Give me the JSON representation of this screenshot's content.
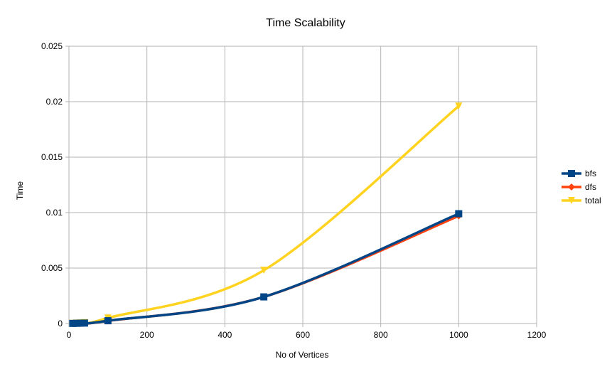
{
  "chart_data": {
    "type": "line",
    "title": "Time Scalability",
    "xlabel": "No of Vertices",
    "ylabel": "Time",
    "xlim": [
      0,
      1200
    ],
    "ylim": [
      0,
      0.025
    ],
    "x_ticks": [
      0,
      200,
      400,
      600,
      800,
      1000,
      1200
    ],
    "y_ticks": [
      0,
      0.005,
      0.01,
      0.015,
      0.02,
      0.025
    ],
    "x_tick_labels": [
      "0",
      "200",
      "400",
      "600",
      "800",
      "1000",
      "1200"
    ],
    "y_tick_labels": [
      "0",
      "0.005",
      "0.01",
      "0.015",
      "0.02",
      "0.025"
    ],
    "grid": true,
    "smooth": true,
    "legend_position": "right",
    "series": [
      {
        "name": "bfs",
        "color": "#004586",
        "marker": "square",
        "x": [
          10,
          20,
          30,
          40,
          100,
          500,
          1000
        ],
        "y": [
          1e-05,
          2e-05,
          3e-05,
          4e-05,
          0.00025,
          0.0024,
          0.0099
        ]
      },
      {
        "name": "dfs",
        "color": "#ff420e",
        "marker": "diamond",
        "x": [
          10,
          20,
          30,
          40,
          100,
          500,
          1000
        ],
        "y": [
          1e-05,
          2e-05,
          3e-05,
          4e-05,
          0.00024,
          0.0024,
          0.0097
        ]
      },
      {
        "name": "total",
        "color": "#ffd320",
        "marker": "triangle-down",
        "x": [
          10,
          20,
          30,
          40,
          100,
          500,
          1000
        ],
        "y": [
          2e-05,
          4e-05,
          6e-05,
          8e-05,
          0.0005,
          0.0048,
          0.0196
        ]
      }
    ]
  }
}
